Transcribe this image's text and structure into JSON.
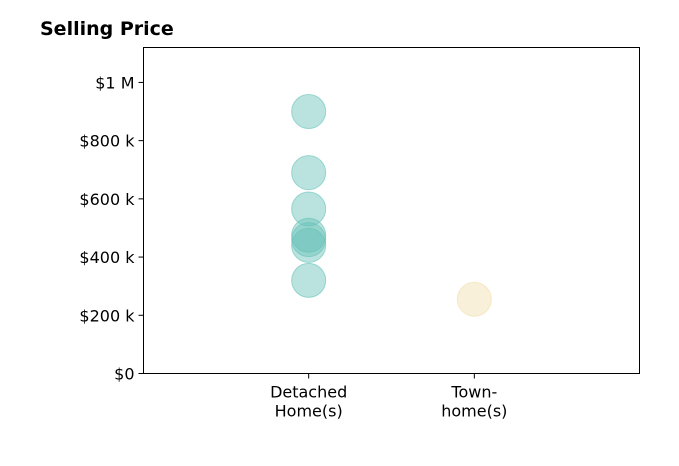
{
  "chart_data": {
    "type": "scatter",
    "title": "Selling Price",
    "categories": [
      "Detached\nHome(s)",
      "Town-\nhome(s)"
    ],
    "ylim": [
      0,
      1120000
    ],
    "yticks": [
      {
        "value": 0,
        "label": "$0"
      },
      {
        "value": 200000,
        "label": "$200 k"
      },
      {
        "value": 400000,
        "label": "$400 k"
      },
      {
        "value": 600000,
        "label": "$600 k"
      },
      {
        "value": 800000,
        "label": "$800 k"
      },
      {
        "value": 1000000,
        "label": "$1 M"
      }
    ],
    "grid": false,
    "series": [
      {
        "category": "Detached\nHome(s)",
        "color": "#66c2b8",
        "values": [
          900000,
          690000,
          565000,
          475000,
          460000,
          440000,
          320000
        ]
      },
      {
        "category": "Town-\nhome(s)",
        "color": "#f2deaa",
        "values": [
          255000
        ]
      }
    ]
  }
}
